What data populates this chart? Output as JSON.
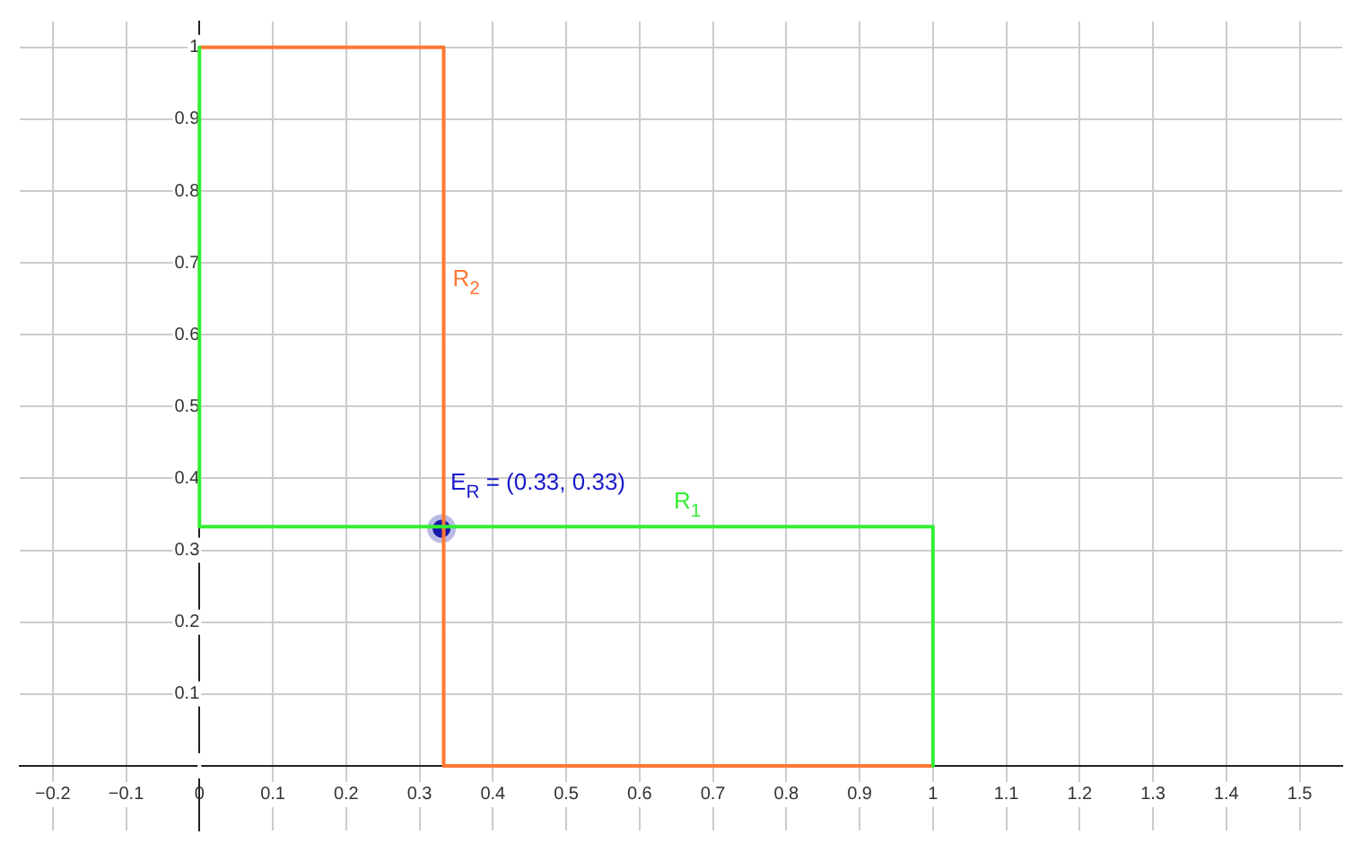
{
  "chart_data": {
    "type": "line",
    "legend": false,
    "grid": true,
    "xlim": [
      -0.245,
      1.558
    ],
    "ylim": [
      -0.09,
      1.036
    ],
    "xticks": [
      {
        "value": -0.2,
        "label": "−0.2"
      },
      {
        "value": -0.1,
        "label": "−0.1"
      },
      0,
      0.1,
      0.2,
      0.3,
      0.4,
      0.5,
      0.6,
      0.7,
      0.8,
      0.9,
      1,
      1.1,
      1.2,
      1.3,
      1.4,
      1.5
    ],
    "yticks": [
      {
        "value": 0,
        "label": null
      },
      0.1,
      0.2,
      0.3,
      0.4,
      0.5,
      0.6,
      0.7,
      0.8,
      0.9,
      1
    ],
    "series": [
      {
        "name": "R$_{1}$",
        "type": "line",
        "color": "#33ee33",
        "x": [
          0,
          0,
          1,
          1
        ],
        "values": [
          1,
          0.333,
          0.333,
          0
        ]
      },
      {
        "name": "R$_{2}$",
        "type": "line",
        "color": "#ff7733",
        "x": [
          0,
          0.333,
          0.333,
          1
        ],
        "values": [
          1,
          1,
          0,
          0
        ]
      },
      {
        "type": "scatter",
        "marker": "circle",
        "color": "#1a1aa8",
        "x": [
          0.33
        ],
        "values": [
          0.33
        ]
      }
    ],
    "annotations": [
      {
        "text": "E$_{R}$ = (0.33, 0.33)",
        "x": 0.33,
        "y": 0.33
      }
    ]
  }
}
